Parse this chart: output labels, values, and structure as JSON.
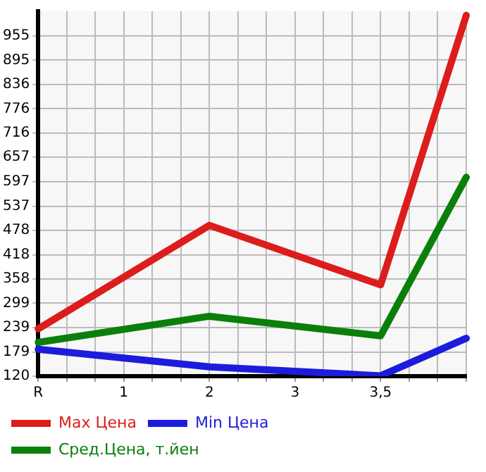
{
  "chart_data": {
    "type": "line",
    "categories": [
      "R",
      null,
      null,
      "1",
      null,
      null,
      "2",
      null,
      null,
      "3",
      null,
      null,
      "3,5",
      null,
      null,
      null
    ],
    "series": [
      {
        "name": "Max Цена",
        "color": "#dd1c1c",
        "values": [
          236,
          null,
          null,
          null,
          null,
          null,
          490,
          null,
          null,
          null,
          null,
          null,
          344,
          null,
          null,
          1005
        ]
      },
      {
        "name": "Min Цена",
        "color": "#1c1cdd",
        "values": [
          186,
          null,
          null,
          null,
          null,
          null,
          143,
          null,
          null,
          null,
          null,
          null,
          121,
          null,
          null,
          213
        ]
      },
      {
        "name": "Сред.Цена, т.йен",
        "color": "#0a800a",
        "values": [
          203,
          null,
          null,
          null,
          null,
          null,
          267,
          null,
          null,
          null,
          null,
          null,
          219,
          null,
          null,
          608
        ]
      }
    ],
    "ylim": [
      120,
      1015
    ],
    "yticks": [
      120,
      179,
      239,
      299,
      358,
      418,
      478,
      537,
      597,
      657,
      716,
      776,
      836,
      895,
      955
    ],
    "grid": true,
    "legend": "bottom left",
    "marker": "none",
    "line_style": "solid"
  }
}
